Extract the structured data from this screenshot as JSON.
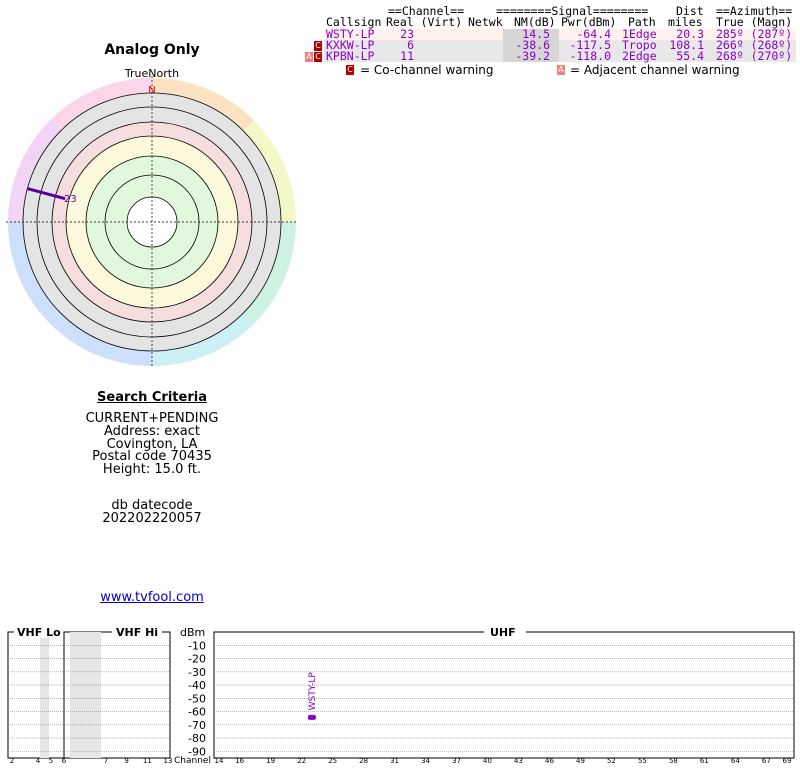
{
  "polar": {
    "title": "Analog Only",
    "north_label": "TrueNorth",
    "n_marker": "N",
    "bearing_label": "23",
    "bearing_deg": 285,
    "bearing_color": "#5a009a"
  },
  "table": {
    "header_top": {
      "channel": "==Channel==",
      "signal": "========Signal========",
      "dist": "Dist",
      "azimuth": "==Azimuth=="
    },
    "header_cols": {
      "callsign": "Callsign",
      "real_virt": "Real (Virt)",
      "netwk": "Netwk",
      "nm": "NM(dB)",
      "pwr": "Pwr(dBm)",
      "path": "Path",
      "miles": "miles",
      "true_magn": "True (Magn)"
    },
    "rows": [
      {
        "warn1": "",
        "warn2": "",
        "callsign": "WSTY-LP",
        "real": "23",
        "nm": "14.5",
        "pwr": "-64.4",
        "path": "1Edge",
        "miles": "20.3",
        "azimuth": "285º (287º)",
        "bg": "#fff2ee"
      },
      {
        "warn1": "",
        "warn2": "C",
        "callsign": "KXKW-LP",
        "real": "6",
        "nm": "-38.6",
        "pwr": "-117.5",
        "path": "Tropo",
        "miles": "108.1",
        "azimuth": "266º (268º)",
        "bg": "#e8e8e8"
      },
      {
        "warn1": "A",
        "warn2": "C",
        "callsign": "KPBN-LP",
        "real": "11",
        "nm": "-39.2",
        "pwr": "-118.0",
        "path": "2Edge",
        "miles": "55.4",
        "azimuth": "268º (270º)",
        "bg": "#e8e8e8"
      }
    ],
    "text_color": "#8a00c8",
    "legend": {
      "co_box": "C",
      "co_label": "= Co-channel warning",
      "adj_box": "A",
      "adj_label": "= Adjacent channel warning"
    }
  },
  "criteria": {
    "title": "Search Criteria",
    "line1": "CURRENT+PENDING",
    "line2": "Address: exact",
    "line3": "Covington, LA",
    "line4": "Postal code 70435",
    "line5": "Height: 15.0 ft.",
    "db_label": "db datecode",
    "db_value": "202202220057"
  },
  "link": {
    "text": "www.tvfool.com"
  },
  "chart_data": {
    "type": "bar",
    "sections": [
      "VHF Lo",
      "VHF Hi",
      "UHF"
    ],
    "y_unit": "dBm",
    "y_ticks": [
      "-10",
      "-20",
      "-30",
      "-40",
      "-50",
      "-60",
      "-70",
      "-80",
      "-90"
    ],
    "ylim": [
      -95,
      0
    ],
    "x_label": "Channel",
    "vhf_lo_ticks": [
      "2",
      "4",
      "5",
      "6"
    ],
    "vhf_hi_ticks": [
      "7",
      "9",
      "11",
      "13"
    ],
    "uhf_ticks": [
      "14",
      "16",
      "19",
      "22",
      "25",
      "28",
      "31",
      "34",
      "37",
      "40",
      "43",
      "46",
      "49",
      "52",
      "55",
      "58",
      "61",
      "64",
      "67",
      "69"
    ],
    "uhf_range": [
      14,
      69
    ],
    "stations": [
      {
        "callsign": "WSTY-LP",
        "channel": 23,
        "dbm": -64.4
      }
    ]
  }
}
